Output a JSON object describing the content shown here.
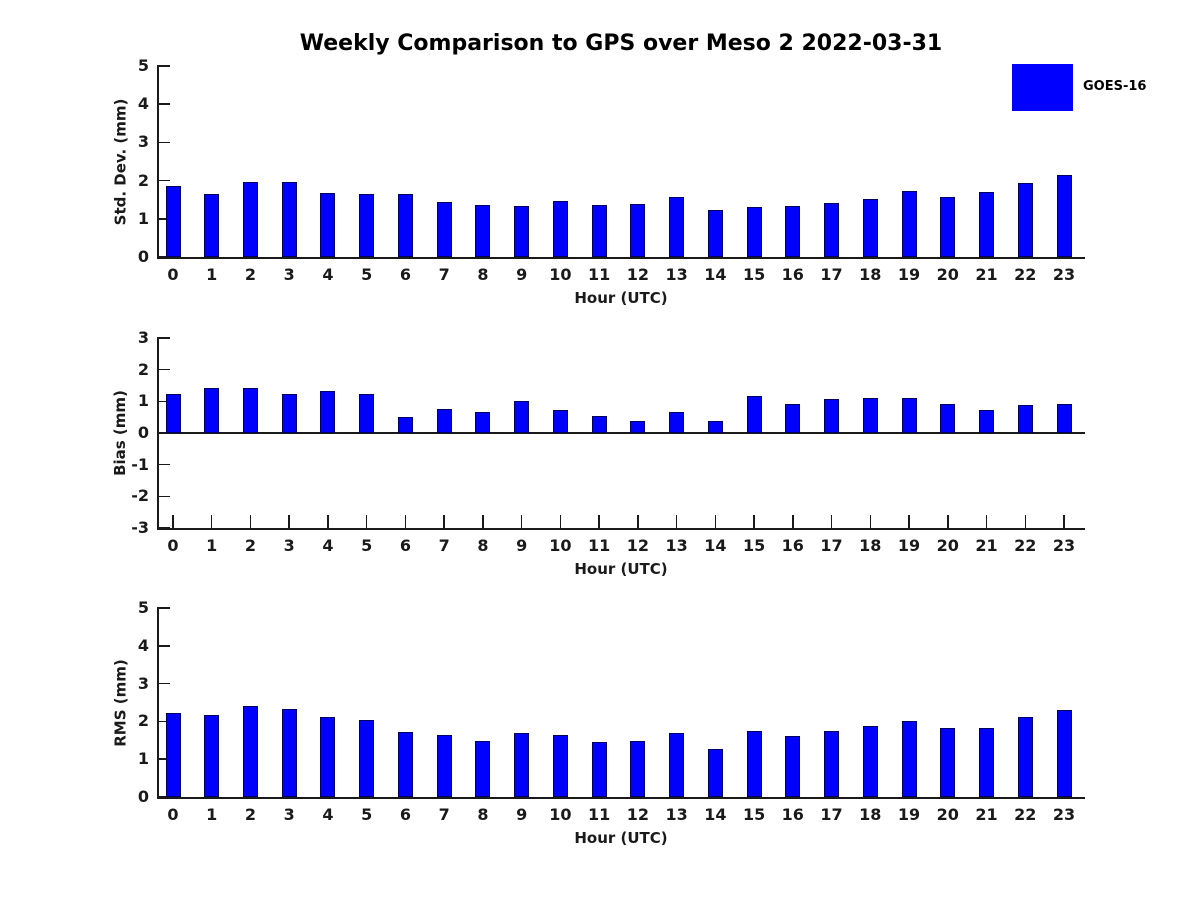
{
  "figure_title": "Weekly Comparison to GPS over Meso 2 2022-03-31",
  "legend": {
    "label": "GOES-16",
    "swatch_color": "#0000ff"
  },
  "colors": {
    "bar_fill": "#0000ff",
    "bar_edge": "#000060",
    "axis": "#1a1a1a",
    "title_text": "#000000"
  },
  "chart_data": [
    {
      "type": "bar",
      "series_name": "GOES-16",
      "ylabel": "Std. Dev. (mm)",
      "xlabel": "Hour (UTC)",
      "ylim": [
        0,
        5
      ],
      "yticks": [
        0,
        1,
        2,
        3,
        4,
        5
      ],
      "grid": false,
      "legend_position": "upper-right-outside",
      "categories": [
        "0",
        "1",
        "2",
        "3",
        "4",
        "5",
        "6",
        "7",
        "8",
        "9",
        "10",
        "11",
        "12",
        "13",
        "14",
        "15",
        "16",
        "17",
        "18",
        "19",
        "20",
        "21",
        "22",
        "23"
      ],
      "values": [
        1.85,
        1.65,
        1.97,
        1.97,
        1.67,
        1.64,
        1.64,
        1.44,
        1.36,
        1.33,
        1.46,
        1.36,
        1.39,
        1.57,
        1.22,
        1.3,
        1.33,
        1.42,
        1.51,
        1.72,
        1.57,
        1.7,
        1.93,
        2.14
      ]
    },
    {
      "type": "bar",
      "series_name": "GOES-16",
      "ylabel": "Bias (mm)",
      "xlabel": "Hour (UTC)",
      "ylim": [
        -3,
        3
      ],
      "yticks": [
        -3,
        -2,
        -1,
        0,
        1,
        2,
        3
      ],
      "grid": false,
      "categories": [
        "0",
        "1",
        "2",
        "3",
        "4",
        "5",
        "6",
        "7",
        "8",
        "9",
        "10",
        "11",
        "12",
        "13",
        "14",
        "15",
        "16",
        "17",
        "18",
        "19",
        "20",
        "21",
        "22",
        "23"
      ],
      "values": [
        1.22,
        1.42,
        1.42,
        1.22,
        1.34,
        1.22,
        0.52,
        0.77,
        0.67,
        1.02,
        0.73,
        0.55,
        0.39,
        0.66,
        0.38,
        1.17,
        0.92,
        1.07,
        1.11,
        1.11,
        0.92,
        0.73,
        0.89,
        0.92
      ]
    },
    {
      "type": "bar",
      "series_name": "GOES-16",
      "ylabel": "RMS (mm)",
      "xlabel": "Hour (UTC)",
      "ylim": [
        0,
        5
      ],
      "yticks": [
        0,
        1,
        2,
        3,
        4,
        5
      ],
      "grid": false,
      "categories": [
        "0",
        "1",
        "2",
        "3",
        "4",
        "5",
        "6",
        "7",
        "8",
        "9",
        "10",
        "11",
        "12",
        "13",
        "14",
        "15",
        "16",
        "17",
        "18",
        "19",
        "20",
        "21",
        "22",
        "23"
      ],
      "values": [
        2.22,
        2.17,
        2.41,
        2.32,
        2.11,
        2.04,
        1.71,
        1.64,
        1.48,
        1.69,
        1.64,
        1.45,
        1.47,
        1.68,
        1.27,
        1.74,
        1.62,
        1.75,
        1.87,
        2.01,
        1.82,
        1.83,
        2.12,
        2.31
      ]
    }
  ]
}
